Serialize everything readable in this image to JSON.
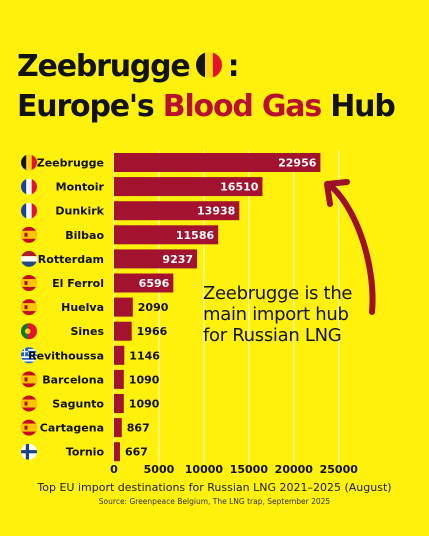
{
  "title": {
    "line1_text": "Zeebrugge",
    "line1_suffix": ":",
    "line2_prefix": "Europe's",
    "line2_highlight": "Blood Gas",
    "line2_suffix": "Hub",
    "flag_icon": "belgium-flag-icon"
  },
  "annotation": {
    "lines": [
      "Zeebrugge is the",
      "main import hub",
      "for Russian LNG"
    ]
  },
  "caption": "Top EU import destinations for Russian LNG 2021–2025 (August)",
  "source": "Source: Greenpeace Belgium, The LNG trap, September 2025",
  "colors": {
    "background": "#FFF10C",
    "bar": "#A3122E",
    "highlight_text": "#B8102E",
    "text": "#121212"
  },
  "chart_data": {
    "type": "bar",
    "orientation": "horizontal",
    "categories": [
      "Zeebrugge",
      "Montoir",
      "Dunkirk",
      "Bilbao",
      "Rotterdam",
      "El Ferrol",
      "Huelva",
      "Sines",
      "Revithoussa",
      "Barcelona",
      "Sagunto",
      "Cartagena",
      "Tornio"
    ],
    "values": [
      22956,
      16510,
      13938,
      11586,
      9237,
      6596,
      2090,
      1966,
      1146,
      1090,
      1090,
      867,
      667
    ],
    "flags": [
      "belgium",
      "france",
      "france",
      "spain",
      "netherlands",
      "spain",
      "spain",
      "portugal",
      "greece",
      "spain",
      "spain",
      "spain",
      "finland"
    ],
    "xticks": [
      "0",
      "5000",
      "10000",
      "15000",
      "20000",
      "25000"
    ],
    "xlim": [
      0,
      25000
    ],
    "grid": true
  }
}
